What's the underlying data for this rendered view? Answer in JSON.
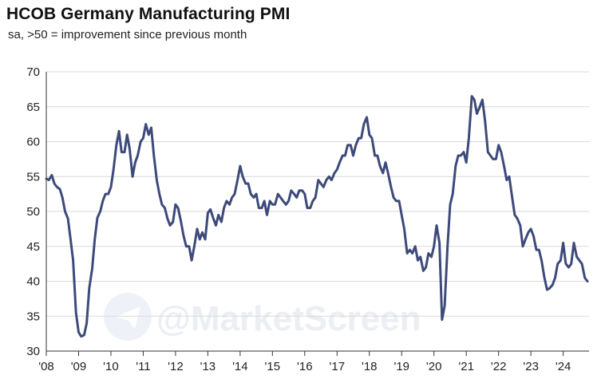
{
  "chart_data": {
    "type": "line",
    "title": "HCOB Germany Manufacturing PMI",
    "subtitle": "sa, >50 = improvement since previous month",
    "xlabel": "",
    "ylabel": "",
    "ylim": [
      30,
      70
    ],
    "xlim": [
      2008.0,
      2024.8
    ],
    "yticks": [
      "30",
      "35",
      "40",
      "45",
      "50",
      "55",
      "60",
      "65",
      "70"
    ],
    "xticks": [
      "'08",
      "'09",
      "'10",
      "'11",
      "'12",
      "'13",
      "'14",
      "'15",
      "'16",
      "'17",
      "'18",
      "'19",
      "'20",
      "'21",
      "'22",
      "'23",
      "'24"
    ],
    "grid": true,
    "legend": "none",
    "watermark": "@MarketScreen",
    "colors": {
      "line": "#3d4a7a",
      "grid": "#d9d9d9",
      "axis": "#333333"
    },
    "series": [
      {
        "name": "HCOB Germany Manufacturing PMI",
        "x": [
          2008.0,
          2008.08,
          2008.17,
          2008.25,
          2008.33,
          2008.42,
          2008.5,
          2008.58,
          2008.67,
          2008.75,
          2008.83,
          2008.92,
          2009.0,
          2009.08,
          2009.17,
          2009.25,
          2009.33,
          2009.42,
          2009.5,
          2009.58,
          2009.67,
          2009.75,
          2009.83,
          2009.92,
          2010.0,
          2010.08,
          2010.17,
          2010.25,
          2010.33,
          2010.42,
          2010.5,
          2010.58,
          2010.67,
          2010.75,
          2010.83,
          2010.92,
          2011.0,
          2011.08,
          2011.17,
          2011.25,
          2011.33,
          2011.42,
          2011.5,
          2011.58,
          2011.67,
          2011.75,
          2011.83,
          2011.92,
          2012.0,
          2012.08,
          2012.17,
          2012.25,
          2012.33,
          2012.42,
          2012.5,
          2012.58,
          2012.67,
          2012.75,
          2012.83,
          2012.92,
          2013.0,
          2013.08,
          2013.17,
          2013.25,
          2013.33,
          2013.42,
          2013.5,
          2013.58,
          2013.67,
          2013.75,
          2013.83,
          2013.92,
          2014.0,
          2014.08,
          2014.17,
          2014.25,
          2014.33,
          2014.42,
          2014.5,
          2014.58,
          2014.67,
          2014.75,
          2014.83,
          2014.92,
          2015.0,
          2015.08,
          2015.17,
          2015.25,
          2015.33,
          2015.42,
          2015.5,
          2015.58,
          2015.67,
          2015.75,
          2015.83,
          2015.92,
          2016.0,
          2016.08,
          2016.17,
          2016.25,
          2016.33,
          2016.42,
          2016.5,
          2016.58,
          2016.67,
          2016.75,
          2016.83,
          2016.92,
          2017.0,
          2017.08,
          2017.17,
          2017.25,
          2017.33,
          2017.42,
          2017.5,
          2017.58,
          2017.67,
          2017.75,
          2017.83,
          2017.92,
          2018.0,
          2018.08,
          2018.17,
          2018.25,
          2018.33,
          2018.42,
          2018.5,
          2018.58,
          2018.67,
          2018.75,
          2018.83,
          2018.92,
          2019.0,
          2019.08,
          2019.17,
          2019.25,
          2019.33,
          2019.42,
          2019.5,
          2019.58,
          2019.67,
          2019.75,
          2019.83,
          2019.92,
          2020.0,
          2020.08,
          2020.17,
          2020.25,
          2020.33,
          2020.42,
          2020.5,
          2020.58,
          2020.67,
          2020.75,
          2020.83,
          2020.92,
          2021.0,
          2021.08,
          2021.17,
          2021.25,
          2021.33,
          2021.42,
          2021.5,
          2021.58,
          2021.67,
          2021.75,
          2021.83,
          2021.92,
          2022.0,
          2022.08,
          2022.17,
          2022.25,
          2022.33,
          2022.42,
          2022.5,
          2022.58,
          2022.67,
          2022.75,
          2022.83,
          2022.92,
          2023.0,
          2023.08,
          2023.17,
          2023.25,
          2023.33,
          2023.42,
          2023.5,
          2023.58,
          2023.67,
          2023.75,
          2023.83,
          2023.92,
          2024.0,
          2024.08,
          2024.17,
          2024.25,
          2024.33,
          2024.42,
          2024.5,
          2024.58,
          2024.67,
          2024.75
        ],
        "values": [
          54.7,
          54.5,
          55.2,
          54.0,
          53.5,
          53.2,
          52.0,
          50.0,
          49.0,
          46.0,
          43.0,
          35.5,
          32.7,
          32.1,
          32.3,
          34.0,
          39.0,
          41.8,
          46.0,
          49.1,
          50.0,
          51.5,
          52.5,
          52.5,
          53.5,
          56.0,
          59.5,
          61.5,
          58.5,
          58.5,
          61.0,
          59.0,
          55.0,
          57.0,
          58.0,
          60.0,
          60.5,
          62.5,
          61.0,
          62.0,
          58.0,
          54.5,
          52.5,
          51.0,
          50.5,
          49.0,
          48.0,
          48.5,
          51.0,
          50.5,
          48.5,
          46.5,
          45.0,
          45.0,
          43.0,
          45.0,
          47.5,
          46.0,
          47.0,
          46.0,
          49.8,
          50.3,
          49.0,
          48.0,
          49.5,
          48.5,
          50.5,
          51.5,
          51.0,
          52.0,
          52.5,
          54.5,
          56.5,
          55.0,
          54.0,
          54.0,
          52.5,
          52.0,
          52.5,
          50.5,
          50.5,
          51.5,
          49.5,
          51.5,
          51.0,
          51.0,
          52.5,
          52.0,
          51.5,
          51.0,
          51.5,
          53.0,
          52.5,
          52.0,
          53.0,
          53.0,
          52.5,
          50.5,
          50.5,
          51.5,
          52.0,
          54.5,
          54.0,
          53.5,
          54.5,
          55.0,
          54.5,
          55.5,
          56.0,
          57.0,
          58.0,
          58.0,
          59.5,
          59.5,
          58.0,
          59.5,
          60.5,
          60.5,
          62.5,
          63.5,
          61.0,
          60.5,
          58.0,
          58.0,
          56.5,
          55.5,
          57.0,
          55.5,
          53.5,
          52.0,
          51.5,
          51.5,
          49.5,
          47.5,
          44.0,
          44.5,
          44.0,
          45.0,
          43.0,
          43.5,
          41.5,
          42.0,
          44.0,
          43.5,
          45.0,
          48.0,
          45.5,
          34.5,
          36.5,
          45.0,
          51.0,
          52.5,
          56.5,
          58.0,
          58.0,
          58.5,
          57.0,
          60.5,
          66.5,
          66.0,
          64.0,
          65.0,
          66.0,
          63.0,
          58.5,
          58.0,
          57.5,
          57.5,
          59.5,
          58.5,
          56.5,
          54.5,
          55.0,
          52.0,
          49.5,
          49.0,
          48.0,
          45.0,
          46.0,
          47.0,
          47.5,
          46.5,
          44.5,
          44.5,
          43.0,
          40.5,
          38.8,
          39.0,
          39.5,
          40.5,
          42.5,
          43.0,
          45.5,
          42.5,
          42.0,
          42.5,
          45.5,
          43.5,
          43.0,
          42.5,
          40.5,
          40.0
        ]
      }
    ]
  }
}
